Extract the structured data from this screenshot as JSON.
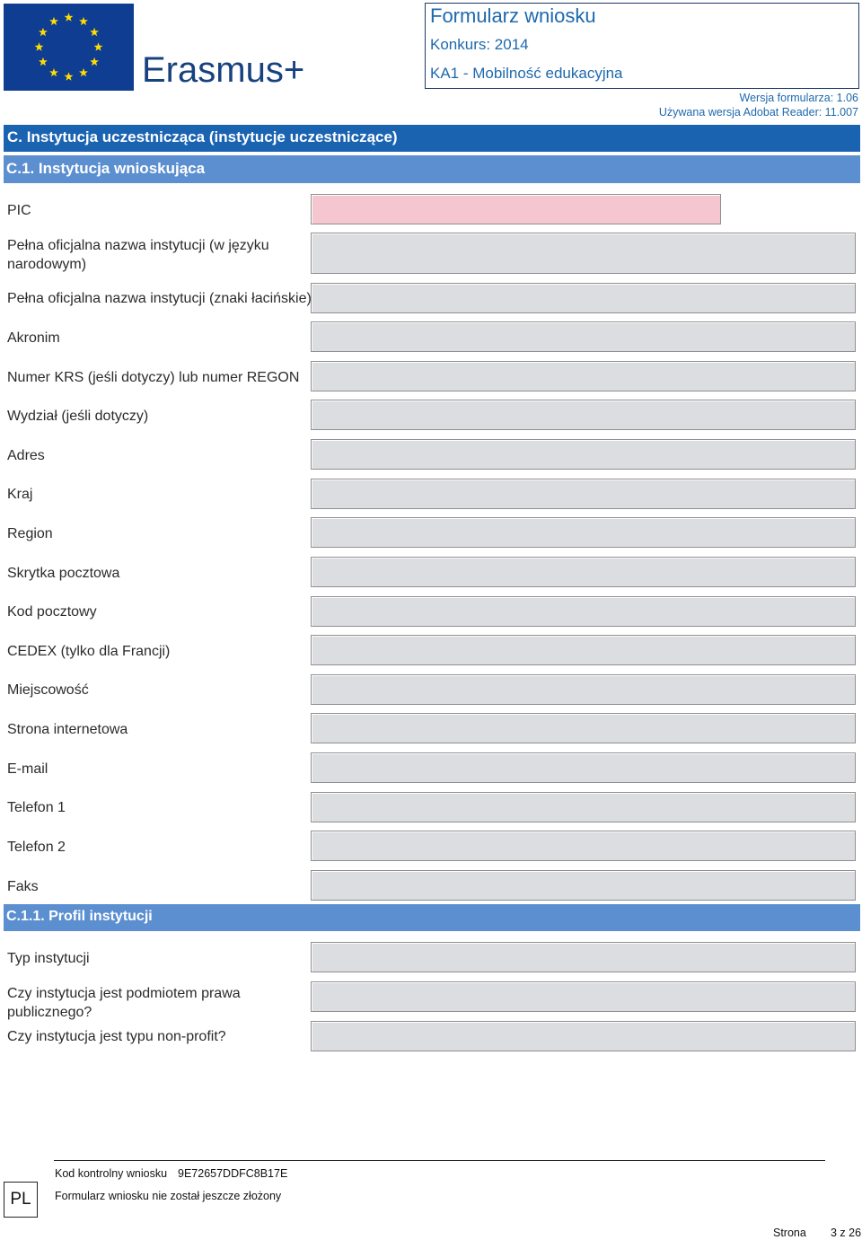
{
  "header": {
    "brand": "Erasmus+",
    "form_title": "Formularz wniosku",
    "call": "Konkurs: 2014",
    "action": "KA1 - Mobilność edukacyjna",
    "form_version": "Wersja formularza: 1.06",
    "reader_version": "Używana wersja Adobat Reader: 11.007"
  },
  "sections": {
    "c": "C. Instytucja uczestnicząca (instytucje uczestniczące)",
    "c1": "C.1. Instytucja wnioskująca",
    "c11": "C.1.1. Profil instytucji"
  },
  "fields": {
    "pic": "PIC",
    "full_name_national": "Pełna oficjalna nazwa instytucji (w języku narodowym)",
    "full_name_latin": "Pełna oficjalna nazwa instytucji (znaki łacińskie)",
    "acronym": "Akronim",
    "krs_regon": "Numer KRS (jeśli dotyczy) lub numer REGON",
    "department": "Wydział (jeśli dotyczy)",
    "address": "Adres",
    "country": "Kraj",
    "region": "Region",
    "po_box": "Skrytka pocztowa",
    "postal_code": "Kod pocztowy",
    "cedex": "CEDEX (tylko dla Francji)",
    "city": "Miejscowość",
    "website": "Strona internetowa",
    "email": "E-mail",
    "phone1": "Telefon 1",
    "phone2": "Telefon 2",
    "fax": "Faks"
  },
  "profile": {
    "type": "Typ instytucji",
    "public_body": "Czy instytucja jest podmiotem prawa publicznego?",
    "non_profit": "Czy instytucja jest typu non-profit?"
  },
  "footer": {
    "language": "PL",
    "checksum_label": "Kod kontrolny wniosku",
    "checksum_value": "9E72657DDFC8B17E",
    "status": "Formularz wniosku nie został jeszcze złożony",
    "page_word": "Strona",
    "page_number": "3 z 26"
  },
  "colors": {
    "section_dark": "#1a63b1",
    "section_light": "#5b8fd0",
    "field_fill": "#dcdde1",
    "field_required": "#f6c6d0",
    "eu_blue": "#0f3d91",
    "eu_star": "#ffdd00"
  }
}
